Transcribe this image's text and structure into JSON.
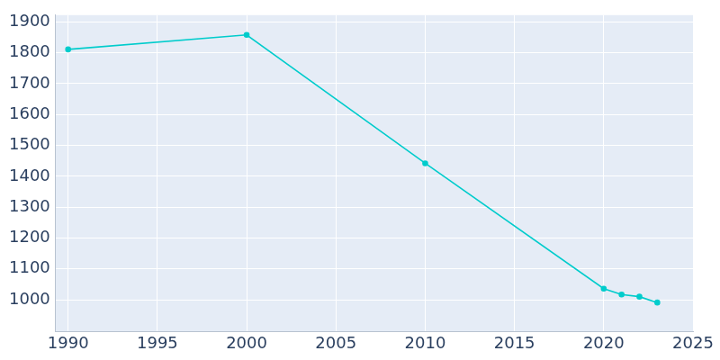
{
  "chart_data": {
    "type": "line",
    "x": [
      1990,
      2000,
      2010,
      2020,
      2021,
      2022,
      2023
    ],
    "values": [
      1811,
      1858,
      1442,
      1036,
      1017,
      1010,
      991
    ],
    "color": "#00cccc",
    "marker": "circle",
    "xlim": [
      1989.3,
      2025
    ],
    "xticks": [
      1990,
      1995,
      2000,
      2005,
      2010,
      2015,
      2020,
      2025
    ],
    "ylim": [
      897,
      1922
    ],
    "yticks": [
      1000,
      1100,
      1200,
      1300,
      1400,
      1500,
      1600,
      1700,
      1800,
      1900
    ],
    "grid": true
  }
}
